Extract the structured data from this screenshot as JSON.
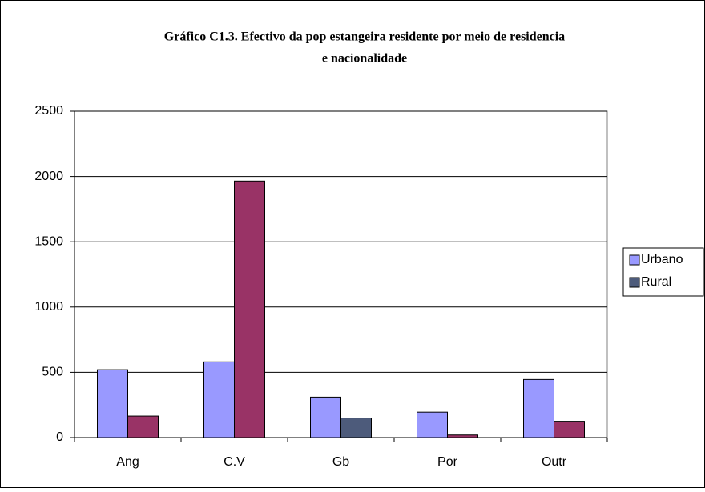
{
  "chart_data": {
    "type": "bar",
    "title_lines": [
      "Gráfico C1.3. Efectivo da pop estangeira residente por meio de residencia",
      "e nacionalidade"
    ],
    "categories": [
      "Ang",
      "C.V",
      "Gb",
      "Por",
      "Outr"
    ],
    "series": [
      {
        "name": "Urbano",
        "color": "#9999ff",
        "values": [
          520,
          580,
          310,
          195,
          445
        ]
      },
      {
        "name": "Rural",
        "color": "#4d5b7b",
        "values": [
          165,
          1965,
          150,
          20,
          125
        ],
        "point_colors": [
          "#993366",
          "#993366",
          "#4d5b7b",
          "#993366",
          "#993366"
        ]
      }
    ],
    "ylim": [
      0,
      2500
    ],
    "yticks": [
      0,
      500,
      1000,
      1500,
      2000,
      2500
    ],
    "grid": true,
    "legend": "right"
  }
}
